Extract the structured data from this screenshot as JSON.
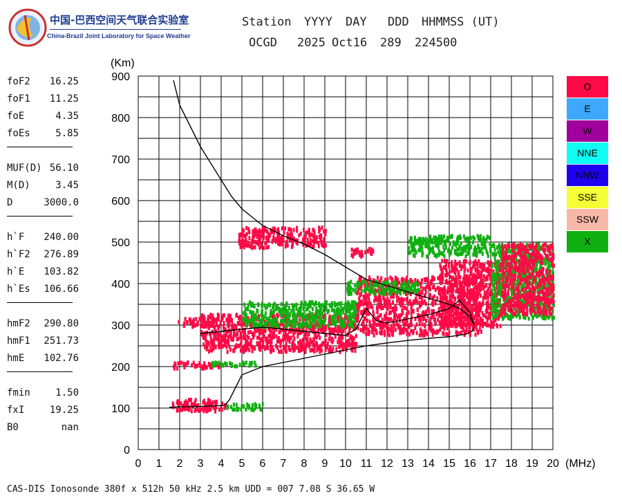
{
  "logo": {
    "cn": "中国-巴西空间天气联合实验室",
    "en": "China-Brazil Joint Laboratory for Space Weather"
  },
  "header": {
    "labels": [
      "Station",
      "YYYY",
      "DAY",
      "DDD",
      "HHMMSS (UT)"
    ],
    "values": [
      "OCGD",
      "2025",
      "Oct16",
      "289",
      "224500"
    ]
  },
  "params": [
    {
      "group": [
        {
          "label": "foF2",
          "value": "16.25"
        },
        {
          "label": "foF1",
          "value": "11.25"
        },
        {
          "label": "foE",
          "value": "4.35"
        },
        {
          "label": "foEs",
          "value": "5.85"
        }
      ]
    },
    {
      "group": [
        {
          "label": "MUF(D)",
          "value": "56.10"
        },
        {
          "label": "M(D)",
          "value": "3.45"
        },
        {
          "label": "D",
          "value": "3000.0"
        }
      ]
    },
    {
      "group": [
        {
          "label": "h`F",
          "value": "240.00"
        },
        {
          "label": "h`F2",
          "value": "276.89"
        },
        {
          "label": "h`E",
          "value": "103.82"
        },
        {
          "label": "h`Es",
          "value": "106.66"
        }
      ]
    },
    {
      "group": [
        {
          "label": "hmF2",
          "value": "290.80"
        },
        {
          "label": "hmF1",
          "value": "251.73"
        },
        {
          "label": "hmE",
          "value": "102.76"
        }
      ]
    },
    {
      "group": [
        {
          "label": "fmin",
          "value": "1.50"
        },
        {
          "label": "fxI",
          "value": "19.25"
        },
        {
          "label": "B0",
          "value": "nan"
        }
      ]
    }
  ],
  "legend": [
    {
      "label": "O",
      "color": "#ff0a46"
    },
    {
      "label": "E",
      "color": "#3ea8ff"
    },
    {
      "label": "W",
      "color": "#a0009b"
    },
    {
      "label": "NNE",
      "color": "#0ffff5"
    },
    {
      "label": "NNW",
      "color": "#1e00ee"
    },
    {
      "label": "SSE",
      "color": "#f5ff35"
    },
    {
      "label": "SSW",
      "color": "#f8b8a8"
    },
    {
      "label": "X",
      "color": "#10b010"
    }
  ],
  "footer": "CAS-DIS Ionosonde 380f x 512h 50 kHz 2.5 km UDD = 007 7.08 S 36.65 W",
  "chart_data": {
    "type": "scatter",
    "xlabel": "(MHz)",
    "ylabel": "(Km)",
    "xlim": [
      0,
      20
    ],
    "ylim": [
      0,
      900
    ],
    "xticks": [
      0,
      1,
      2,
      3,
      4,
      5,
      6,
      7,
      8,
      9,
      10,
      11,
      12,
      13,
      14,
      15,
      16,
      17,
      18,
      19,
      20
    ],
    "yticks": [
      0,
      100,
      200,
      300,
      400,
      500,
      600,
      700,
      800,
      900
    ],
    "grid": true,
    "legend_position": "right",
    "trace_regions": [
      {
        "mode": "O",
        "x": [
          1.6,
          4.2
        ],
        "y": [
          97,
          125
        ]
      },
      {
        "mode": "X",
        "x": [
          4.2,
          6.0
        ],
        "y": [
          100,
          115
        ]
      },
      {
        "mode": "O",
        "x": [
          1.6,
          3.9
        ],
        "y": [
          200,
          215
        ]
      },
      {
        "mode": "X",
        "x": [
          3.5,
          5.8
        ],
        "y": [
          205,
          215
        ]
      },
      {
        "mode": "O",
        "x": [
          1.9,
          3.8
        ],
        "y": [
          300,
          320
        ]
      },
      {
        "mode": "O",
        "x": [
          3.0,
          10.5
        ],
        "y": [
          240,
          330
        ]
      },
      {
        "mode": "X",
        "x": [
          5.0,
          10.5
        ],
        "y": [
          300,
          360
        ]
      },
      {
        "mode": "O",
        "x": [
          10.5,
          16.5
        ],
        "y": [
          280,
          420
        ]
      },
      {
        "mode": "X",
        "x": [
          10.0,
          13.5
        ],
        "y": [
          380,
          410
        ]
      },
      {
        "mode": "O",
        "x": [
          14.5,
          17.5
        ],
        "y": [
          300,
          460
        ]
      },
      {
        "mode": "X",
        "x": [
          13.0,
          17.0
        ],
        "y": [
          470,
          520
        ]
      },
      {
        "mode": "X",
        "x": [
          17.0,
          20.0
        ],
        "y": [
          320,
          500
        ]
      },
      {
        "mode": "O",
        "x": [
          17.5,
          20.0
        ],
        "y": [
          330,
          500
        ]
      },
      {
        "mode": "O",
        "x": [
          4.8,
          9.0
        ],
        "y": [
          490,
          540
        ]
      },
      {
        "mode": "O",
        "x": [
          10.2,
          11.3
        ],
        "y": [
          470,
          490
        ]
      }
    ],
    "profile_curve": {
      "x": [
        1.7,
        2.0,
        2.5,
        3.0,
        3.5,
        4.0,
        4.5,
        5.0,
        5.5,
        6.0,
        7.0,
        8.0,
        9.0,
        10.0,
        11.0,
        12.0,
        13.0,
        14.0,
        15.0,
        15.5,
        15.9,
        16.1,
        16.2
      ],
      "y": [
        890,
        830,
        780,
        730,
        690,
        650,
        610,
        580,
        560,
        540,
        515,
        495,
        470,
        440,
        410,
        395,
        380,
        365,
        350,
        340,
        325,
        310,
        300
      ]
    },
    "height_curve": {
      "x": [
        1.5,
        2.0,
        3.0,
        4.0,
        4.2,
        4.4,
        4.7,
        5.0,
        6.0,
        7.0,
        8.0,
        9.0,
        10.0,
        11.0,
        12.0,
        13.0,
        14.0,
        15.0,
        15.8,
        16.1,
        16.2
      ],
      "y": [
        102,
        103,
        104,
        106,
        108,
        120,
        150,
        180,
        200,
        210,
        220,
        230,
        240,
        250,
        257,
        263,
        268,
        272,
        278,
        285,
        295
      ]
    },
    "virtual_trace": {
      "x": [
        3.0,
        4.0,
        5.0,
        6.0,
        7.0,
        8.0,
        9.0,
        10.0,
        10.5,
        11.0,
        11.5,
        12.0,
        13.0,
        14.0,
        15.0,
        15.5,
        16.0,
        16.2
      ],
      "y": [
        280,
        285,
        290,
        295,
        290,
        285,
        280,
        275,
        290,
        340,
        310,
        305,
        315,
        325,
        340,
        360,
        330,
        300
      ]
    }
  }
}
